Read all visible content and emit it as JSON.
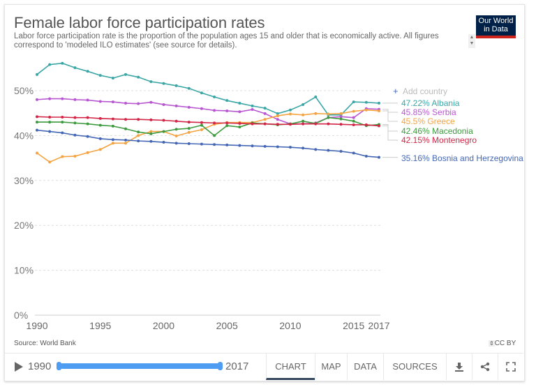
{
  "header": {
    "title": "Female labor force participation rates",
    "subtitle": "Labor force participation rate is the proportion of the population ages 15 and older that is economically active. All figures correspond to 'modeled ILO estimates' (see source for details).",
    "logo_line1": "Our World",
    "logo_line2": "in Data",
    "scroll_up": "▲",
    "scroll_down": "▼"
  },
  "legend": {
    "add_country_icon": "+",
    "add_country_label": "Add country"
  },
  "footer": {
    "source": "Source: World Bank",
    "license_icon": "⇕",
    "license": "CC BY",
    "timeline_start": "1990",
    "timeline_end": "2017",
    "tabs": [
      {
        "label": "CHART",
        "active": true
      },
      {
        "label": "MAP",
        "active": false
      },
      {
        "label": "DATA",
        "active": false
      },
      {
        "label": "SOURCES",
        "active": false
      }
    ],
    "icons": [
      "download-icon",
      "share-icon",
      "fullscreen-icon"
    ]
  },
  "colors": {
    "Albania": "#3aa6a6",
    "Serbia": "#b857d1",
    "Greece": "#f4a340",
    "Macedonia": "#3d9a3d",
    "Montenegro": "#d32545",
    "Bosnia and Herzegovina": "#4467b5",
    "slider": "#4f9cf3",
    "logo_bg": "#002147",
    "logo_accent": "#ce261e"
  },
  "chart_data": {
    "type": "line",
    "title": "Female labor force participation rates",
    "xlabel": "",
    "ylabel": "",
    "ylim": [
      0,
      58
    ],
    "y_ticks": [
      "0%",
      "10%",
      "20%",
      "30%",
      "40%",
      "50%"
    ],
    "y_tick_values": [
      0,
      10,
      20,
      30,
      40,
      50
    ],
    "x_ticks": [
      "1990",
      "1995",
      "2000",
      "2005",
      "2010",
      "2015",
      "2017"
    ],
    "x_tick_values": [
      1990,
      1995,
      2000,
      2005,
      2010,
      2015,
      2017
    ],
    "grid": true,
    "legend_placement": "right",
    "x": [
      1990,
      1991,
      1992,
      1993,
      1994,
      1995,
      1996,
      1997,
      1998,
      1999,
      2000,
      2001,
      2002,
      2003,
      2004,
      2005,
      2006,
      2007,
      2008,
      2009,
      2010,
      2011,
      2012,
      2013,
      2014,
      2015,
      2016,
      2017
    ],
    "series": [
      {
        "name": "Albania",
        "label": "47.22% Albania",
        "values": [
          53.6,
          55.8,
          56.1,
          55.1,
          54.3,
          53.4,
          52.8,
          53.6,
          53.0,
          52.0,
          51.6,
          51.1,
          50.5,
          49.5,
          48.6,
          47.8,
          47.2,
          46.6,
          46.1,
          44.9,
          45.7,
          46.9,
          48.6,
          44.6,
          44.6,
          47.5,
          47.4,
          47.22
        ]
      },
      {
        "name": "Serbia",
        "label": "45.85% Serbia",
        "values": [
          48.0,
          48.2,
          48.2,
          48.0,
          47.9,
          47.6,
          47.5,
          47.2,
          47.1,
          47.4,
          46.9,
          46.6,
          46.3,
          46.0,
          45.6,
          45.5,
          45.3,
          45.8,
          44.9,
          43.6,
          42.6,
          42.6,
          42.8,
          44.0,
          44.2,
          44.0,
          46.0,
          45.85
        ]
      },
      {
        "name": "Greece",
        "label": "45.5% Greece",
        "values": [
          36.1,
          34.1,
          35.3,
          35.4,
          36.2,
          36.9,
          38.3,
          38.3,
          40.0,
          40.9,
          40.9,
          39.9,
          40.7,
          41.3,
          42.5,
          42.9,
          42.9,
          42.9,
          43.6,
          44.4,
          44.8,
          44.6,
          44.9,
          44.8,
          44.9,
          45.4,
          45.7,
          45.5
        ]
      },
      {
        "name": "Macedonia",
        "label": "42.46% Macedonia",
        "values": [
          43.0,
          43.0,
          43.0,
          42.8,
          42.6,
          42.3,
          42.1,
          41.5,
          40.8,
          40.4,
          40.9,
          41.4,
          41.6,
          42.3,
          40.0,
          42.2,
          41.9,
          42.8,
          42.6,
          42.4,
          42.6,
          43.2,
          42.7,
          44.0,
          43.7,
          43.2,
          42.2,
          42.46
        ]
      },
      {
        "name": "Montenegro",
        "label": "42.15% Montenegro",
        "values": [
          44.2,
          44.1,
          44.1,
          44.0,
          44.0,
          43.8,
          43.7,
          43.6,
          43.6,
          43.5,
          43.4,
          43.2,
          43.0,
          42.9,
          42.8,
          42.8,
          42.7,
          42.6,
          42.6,
          42.5,
          42.5,
          42.6,
          42.6,
          42.6,
          42.5,
          42.4,
          42.4,
          42.15
        ]
      },
      {
        "name": "Bosnia and Herzegovina",
        "label": "35.16% Bosnia and Herzegovina",
        "values": [
          41.2,
          40.9,
          40.6,
          40.1,
          39.8,
          39.3,
          39.1,
          39.0,
          38.8,
          38.7,
          38.5,
          38.3,
          38.2,
          38.1,
          38.0,
          37.9,
          37.8,
          37.7,
          37.6,
          37.5,
          37.4,
          37.2,
          36.9,
          36.7,
          36.5,
          36.1,
          35.4,
          35.16
        ]
      }
    ]
  }
}
